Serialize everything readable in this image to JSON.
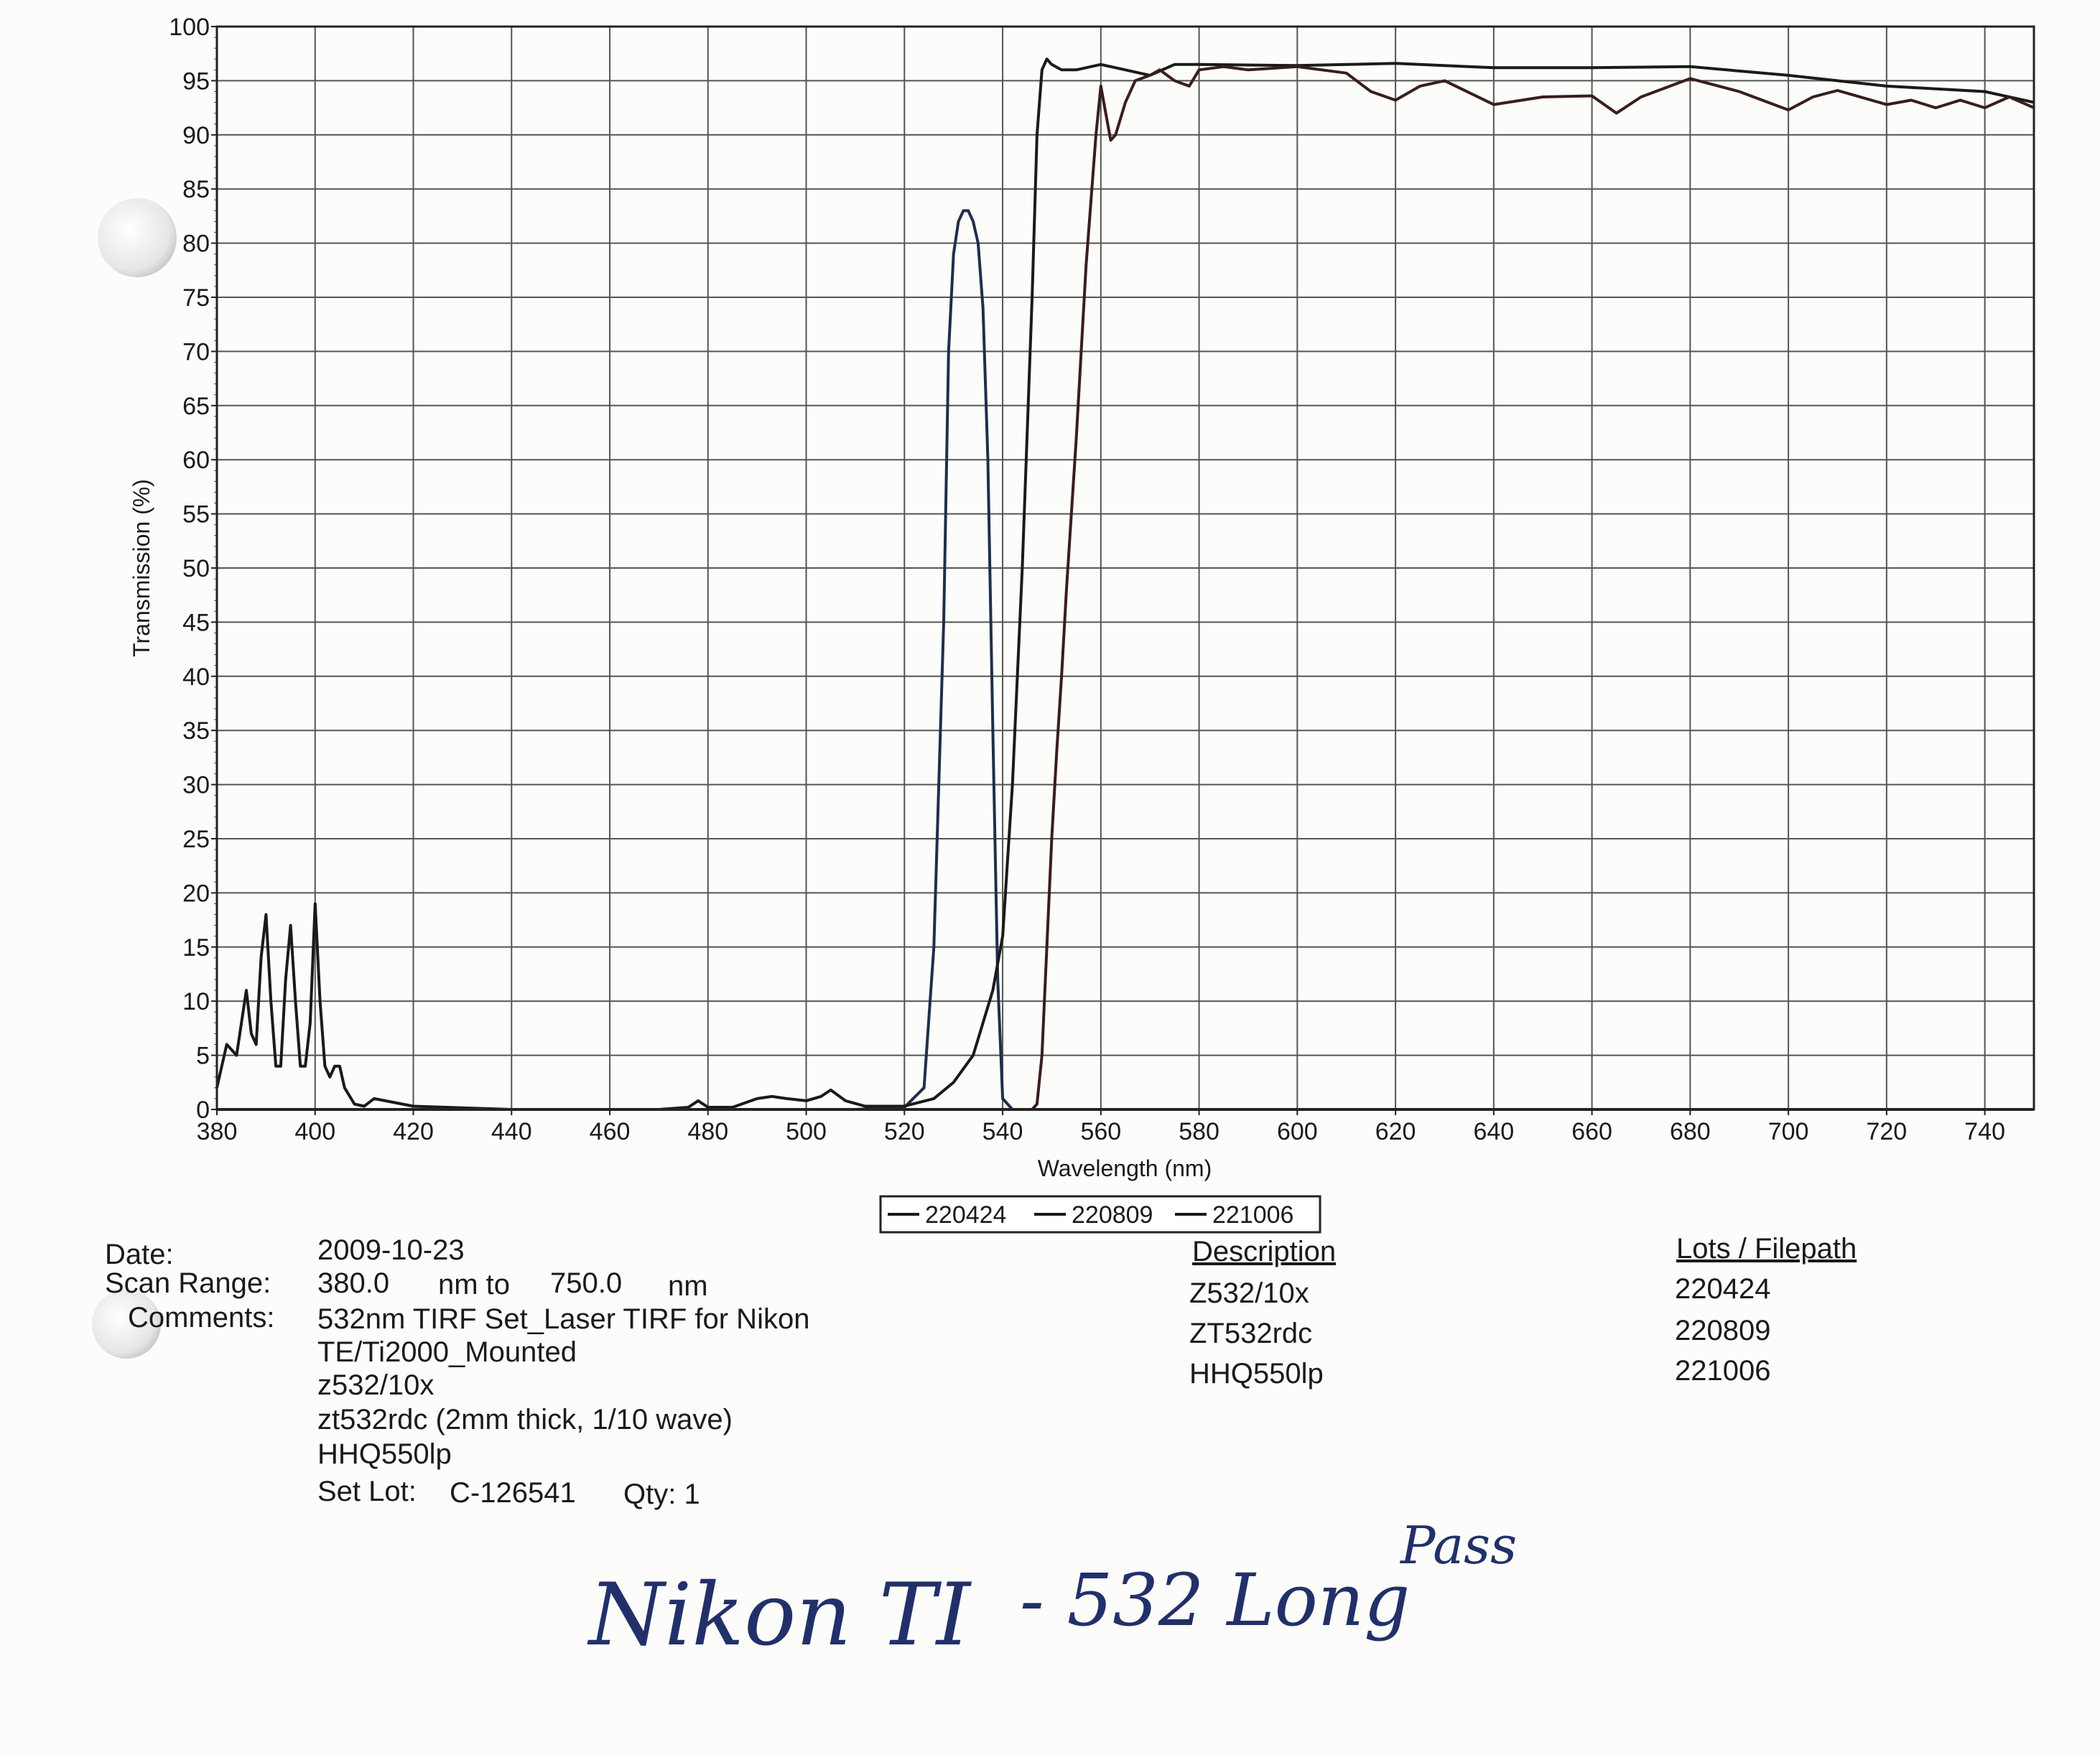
{
  "chart_data": {
    "type": "line",
    "xlabel": "Wavelength (nm)",
    "ylabel": "Transmission (%)",
    "xlim": [
      380,
      750
    ],
    "ylim": [
      0,
      100
    ],
    "x_ticks": [
      "380",
      "400",
      "420",
      "440",
      "460",
      "480",
      "500",
      "520",
      "540",
      "560",
      "580",
      "600",
      "620",
      "640",
      "660",
      "680",
      "700",
      "720",
      "740"
    ],
    "y_ticks": [
      "0",
      "5",
      "10",
      "15",
      "20",
      "25",
      "30",
      "35",
      "40",
      "45",
      "50",
      "55",
      "60",
      "65",
      "70",
      "75",
      "80",
      "85",
      "90",
      "95",
      "100"
    ],
    "grid": true,
    "legend_position": "bottom-center",
    "series": [
      {
        "name": "220424",
        "color": "#1f2f4a",
        "x": [
          380,
          510,
          520,
          524,
          526,
          528,
          529,
          530,
          531,
          532,
          533,
          534,
          535,
          536,
          537,
          538,
          539,
          540,
          542,
          546,
          560,
          600,
          700,
          750
        ],
        "y": [
          0,
          0,
          0.2,
          2,
          15,
          45,
          70,
          79,
          82,
          83,
          83,
          82,
          80,
          74,
          60,
          35,
          12,
          1,
          0,
          0,
          0,
          0,
          0,
          0
        ]
      },
      {
        "name": "220809",
        "color": "#1a1a1a",
        "x": [
          380,
          381,
          382,
          384,
          386,
          387,
          388,
          389,
          390,
          391,
          392,
          393,
          394,
          395,
          396,
          397,
          398,
          399,
          400,
          401,
          402,
          403,
          404,
          405,
          406,
          408,
          410,
          412,
          420,
          440,
          470,
          476,
          478,
          480,
          485,
          490,
          493,
          496,
          500,
          503,
          505,
          508,
          512,
          520,
          526,
          530,
          534,
          536,
          538,
          540,
          542,
          544,
          546,
          547,
          548,
          549,
          550,
          552,
          555,
          560,
          565,
          570,
          575,
          580,
          600,
          620,
          640,
          660,
          680,
          700,
          720,
          740,
          750
        ],
        "y": [
          2,
          4,
          6,
          5,
          11,
          7,
          6,
          14,
          18,
          10,
          4,
          4,
          12,
          17,
          10,
          4,
          4,
          8,
          19,
          10,
          4,
          3,
          4,
          4,
          2,
          0.5,
          0.3,
          1,
          0.3,
          0,
          0,
          0.2,
          0.8,
          0.2,
          0.2,
          1,
          1.2,
          1,
          0.8,
          1.2,
          1.8,
          0.8,
          0.3,
          0.3,
          1,
          2.5,
          5,
          8,
          11,
          16,
          30,
          50,
          75,
          90,
          96,
          97,
          96.5,
          96,
          96,
          96.5,
          96,
          95.5,
          96.5,
          96.5,
          96.4,
          96.6,
          96.2,
          96.2,
          96.3,
          95.5,
          94.5,
          94,
          93
        ]
      },
      {
        "name": "221006",
        "color": "#3a1d1d",
        "x": [
          380,
          546,
          547,
          548,
          549,
          550,
          551,
          552,
          553,
          555,
          557,
          559,
          560,
          561,
          562,
          563,
          565,
          567,
          570,
          572,
          575,
          578,
          580,
          585,
          590,
          600,
          610,
          615,
          620,
          625,
          630,
          640,
          650,
          660,
          665,
          670,
          680,
          690,
          700,
          705,
          710,
          720,
          725,
          730,
          735,
          740,
          745,
          750
        ],
        "y": [
          0,
          0,
          0.5,
          5,
          15,
          25,
          33,
          40,
          48,
          62,
          78,
          90,
          94.5,
          92,
          89.5,
          90,
          93,
          95,
          95.5,
          96,
          95,
          94.5,
          96,
          96.3,
          96,
          96.3,
          95.7,
          94,
          93.2,
          94.5,
          95,
          92.8,
          93.5,
          93.6,
          92,
          93.5,
          95.2,
          94,
          92.3,
          93.5,
          94.1,
          92.8,
          93.2,
          92.5,
          93.2,
          92.5,
          93.5,
          92.5
        ]
      }
    ]
  },
  "info": {
    "date_label": "Date:",
    "date_value": "2009-10-23",
    "scan_label": "Scan Range:",
    "scan_from": "380.0",
    "scan_unit1": "nm to",
    "scan_to": "750.0",
    "scan_unit2": "nm",
    "comments_label": "Comments:",
    "comment_lines": [
      "532nm TIRF Set_Laser TIRF for Nikon",
      "TE/Ti2000_Mounted",
      "z532/10x",
      "zt532rdc (2mm thick, 1/10 wave)",
      "HHQ550lp"
    ],
    "set_lot_label": "Set Lot:",
    "set_lot_value": "C-126541",
    "qty_label": "Qty: 1",
    "description_header": "Description",
    "descriptions": [
      "Z532/10x",
      "ZT532rdc",
      "HHQ550lp"
    ],
    "lots_header": "Lots / Filepath",
    "lots": [
      "220424",
      "220809",
      "221006"
    ]
  },
  "handwriting": {
    "part1": "Nikon TI",
    "part2": "- 532 Long",
    "part3": "Pass"
  }
}
